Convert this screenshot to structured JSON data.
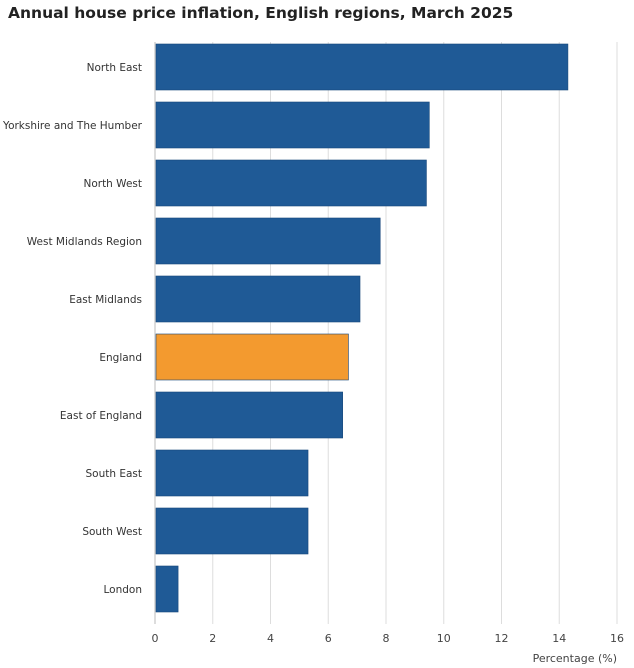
{
  "chart_data": {
    "type": "bar",
    "orientation": "horizontal",
    "title": "Annual house price inflation, English regions, March 2025",
    "xlabel": "Percentage (%)",
    "ylabel": "",
    "xlim": [
      0,
      16
    ],
    "ticks": [
      "0",
      "2",
      "4",
      "6",
      "8",
      "10",
      "12",
      "14",
      "16"
    ],
    "grid": true,
    "categories": [
      "North East",
      "Yorkshire and The Humber",
      "North West",
      "West Midlands Region",
      "East Midlands",
      "England",
      "East of England",
      "South East",
      "South West",
      "London"
    ],
    "values": [
      14.3,
      9.5,
      9.4,
      7.8,
      7.1,
      6.7,
      6.5,
      5.3,
      5.3,
      0.8
    ],
    "highlight_category": "England",
    "colors": {
      "bar": "#1f5a96",
      "highlight": "#f39a2f",
      "grid": "#dddddd",
      "axis": "#bbbbbb"
    }
  }
}
